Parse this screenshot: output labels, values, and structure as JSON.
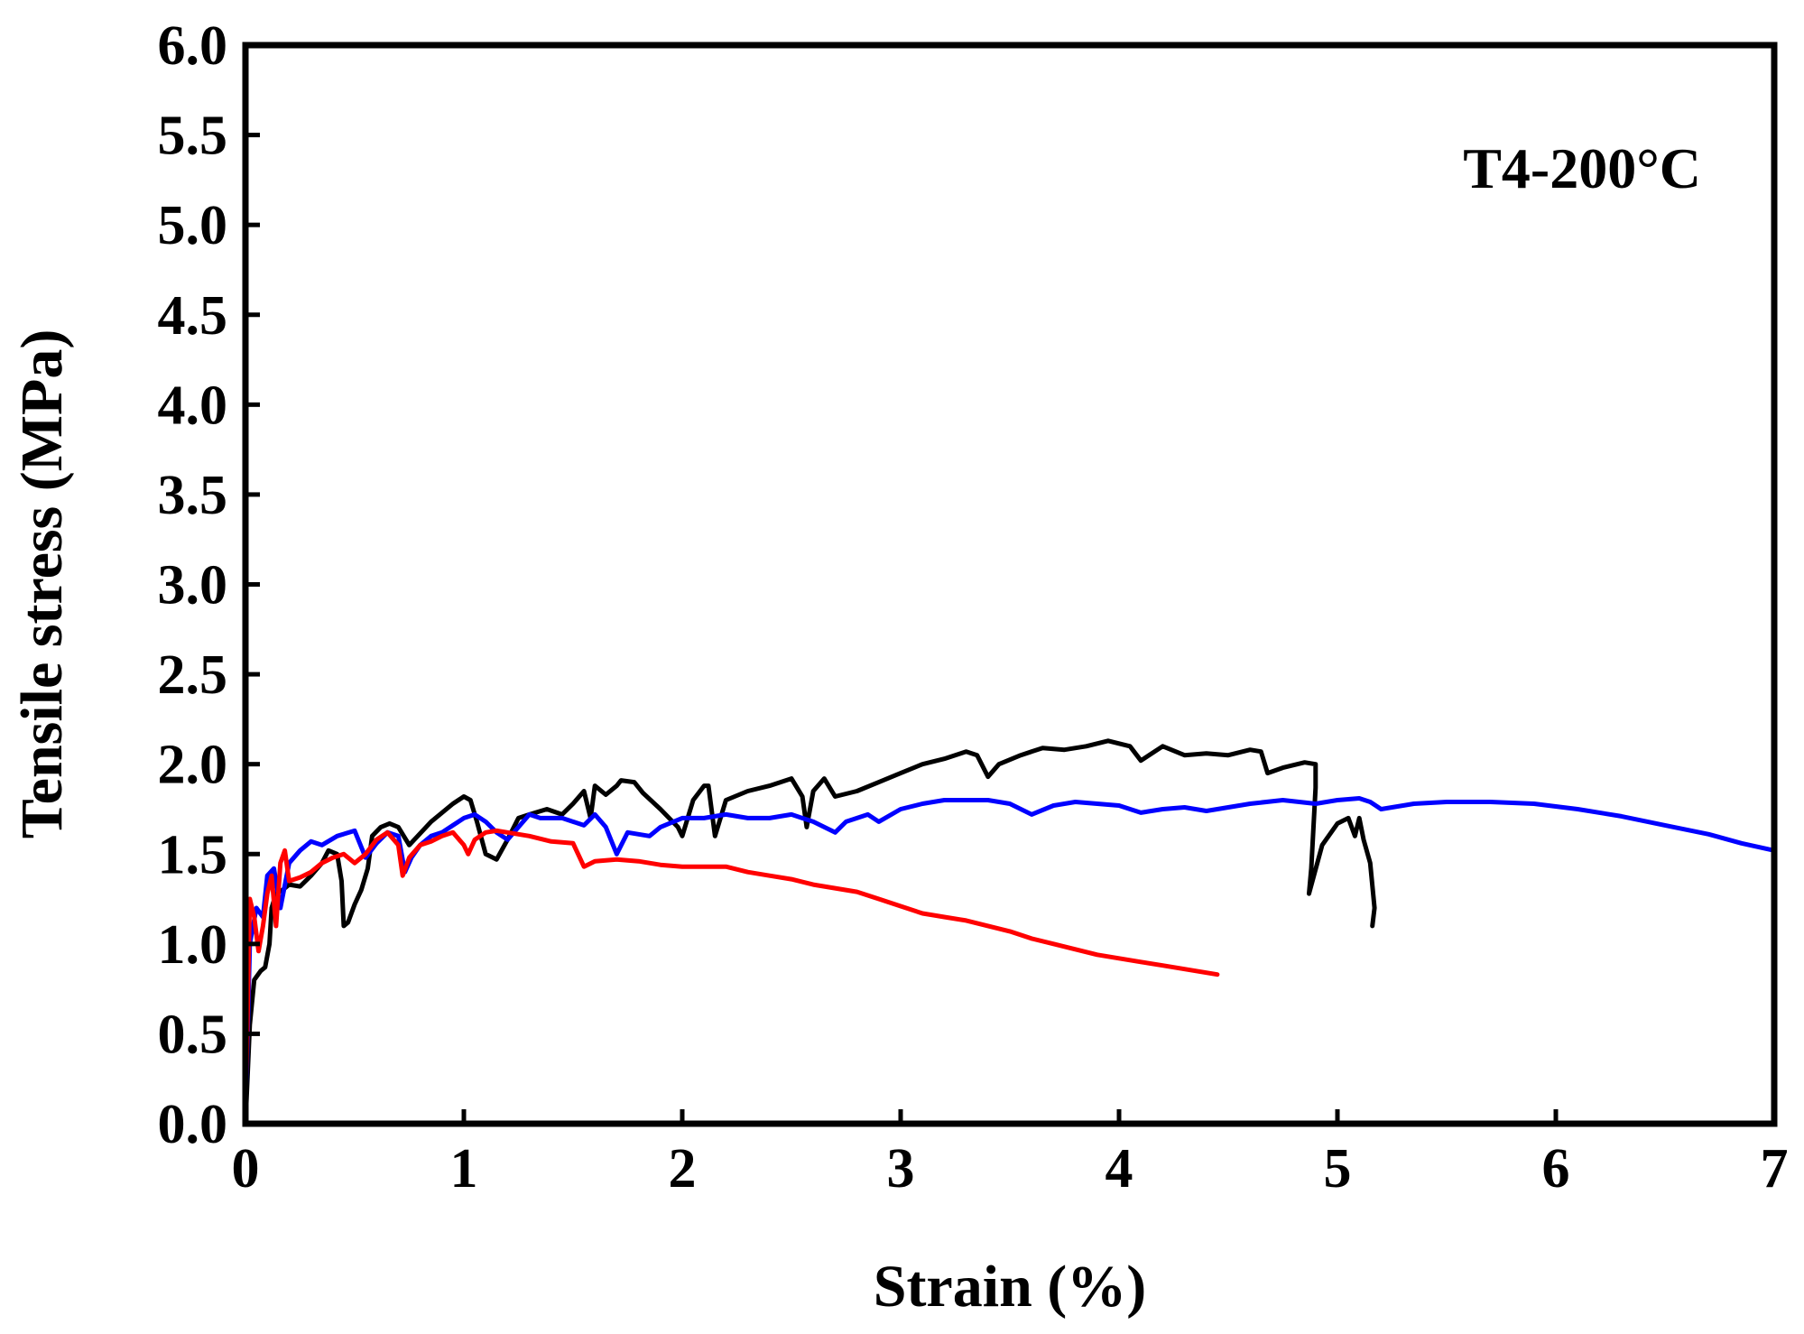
{
  "chart_data": {
    "type": "line",
    "title": "",
    "xlabel": "Strain (%)",
    "ylabel": "Tensile stress (MPa)",
    "xlim": [
      0,
      7
    ],
    "ylim": [
      0,
      6
    ],
    "x_ticks": [
      "0",
      "1",
      "2",
      "3",
      "4",
      "5",
      "6",
      "7"
    ],
    "y_ticks": [
      "0.0",
      "0.5",
      "1.0",
      "1.5",
      "2.0",
      "2.5",
      "3.0",
      "3.5",
      "4.0",
      "4.5",
      "5.0",
      "5.5",
      "6.0"
    ],
    "grid": false,
    "annotation": "T4-200°C",
    "series": [
      {
        "color": "#000000",
        "points": [
          [
            0.0,
            0.0
          ],
          [
            0.02,
            0.55
          ],
          [
            0.04,
            0.8
          ],
          [
            0.07,
            0.85
          ],
          [
            0.09,
            0.87
          ],
          [
            0.11,
            1.0
          ],
          [
            0.12,
            1.2
          ],
          [
            0.14,
            1.28
          ],
          [
            0.17,
            1.3
          ],
          [
            0.2,
            1.33
          ],
          [
            0.25,
            1.32
          ],
          [
            0.3,
            1.38
          ],
          [
            0.35,
            1.45
          ],
          [
            0.38,
            1.52
          ],
          [
            0.42,
            1.5
          ],
          [
            0.44,
            1.35
          ],
          [
            0.45,
            1.1
          ],
          [
            0.47,
            1.12
          ],
          [
            0.5,
            1.22
          ],
          [
            0.53,
            1.3
          ],
          [
            0.56,
            1.42
          ],
          [
            0.58,
            1.6
          ],
          [
            0.62,
            1.65
          ],
          [
            0.66,
            1.67
          ],
          [
            0.7,
            1.65
          ],
          [
            0.75,
            1.55
          ],
          [
            0.85,
            1.68
          ],
          [
            0.95,
            1.78
          ],
          [
            1.0,
            1.82
          ],
          [
            1.03,
            1.8
          ],
          [
            1.06,
            1.68
          ],
          [
            1.1,
            1.5
          ],
          [
            1.15,
            1.47
          ],
          [
            1.2,
            1.58
          ],
          [
            1.25,
            1.7
          ],
          [
            1.3,
            1.72
          ],
          [
            1.38,
            1.75
          ],
          [
            1.45,
            1.72
          ],
          [
            1.5,
            1.78
          ],
          [
            1.55,
            1.85
          ],
          [
            1.58,
            1.7
          ],
          [
            1.6,
            1.88
          ],
          [
            1.65,
            1.83
          ],
          [
            1.7,
            1.88
          ],
          [
            1.72,
            1.91
          ],
          [
            1.78,
            1.9
          ],
          [
            1.82,
            1.84
          ],
          [
            1.9,
            1.75
          ],
          [
            1.98,
            1.65
          ],
          [
            2.0,
            1.6
          ],
          [
            2.05,
            1.8
          ],
          [
            2.1,
            1.88
          ],
          [
            2.12,
            1.88
          ],
          [
            2.15,
            1.6
          ],
          [
            2.2,
            1.8
          ],
          [
            2.3,
            1.85
          ],
          [
            2.4,
            1.88
          ],
          [
            2.5,
            1.92
          ],
          [
            2.55,
            1.82
          ],
          [
            2.57,
            1.65
          ],
          [
            2.6,
            1.85
          ],
          [
            2.65,
            1.92
          ],
          [
            2.7,
            1.82
          ],
          [
            2.8,
            1.85
          ],
          [
            2.9,
            1.9
          ],
          [
            3.0,
            1.95
          ],
          [
            3.1,
            2.0
          ],
          [
            3.2,
            2.03
          ],
          [
            3.3,
            2.07
          ],
          [
            3.35,
            2.05
          ],
          [
            3.4,
            1.93
          ],
          [
            3.45,
            2.0
          ],
          [
            3.55,
            2.05
          ],
          [
            3.65,
            2.09
          ],
          [
            3.75,
            2.08
          ],
          [
            3.85,
            2.1
          ],
          [
            3.95,
            2.13
          ],
          [
            4.05,
            2.1
          ],
          [
            4.1,
            2.02
          ],
          [
            4.2,
            2.1
          ],
          [
            4.3,
            2.05
          ],
          [
            4.4,
            2.06
          ],
          [
            4.5,
            2.05
          ],
          [
            4.6,
            2.08
          ],
          [
            4.65,
            2.07
          ],
          [
            4.68,
            1.95
          ],
          [
            4.75,
            1.98
          ],
          [
            4.85,
            2.01
          ],
          [
            4.9,
            2.0
          ],
          [
            4.9,
            1.87
          ],
          [
            4.88,
            1.42
          ],
          [
            4.87,
            1.28
          ],
          [
            4.93,
            1.55
          ],
          [
            5.0,
            1.67
          ],
          [
            5.05,
            1.7
          ],
          [
            5.08,
            1.6
          ],
          [
            5.1,
            1.7
          ],
          [
            5.12,
            1.58
          ],
          [
            5.15,
            1.45
          ],
          [
            5.17,
            1.2
          ],
          [
            5.16,
            1.1
          ]
        ]
      },
      {
        "color": "#0000ff",
        "points": [
          [
            0.0,
            0.0
          ],
          [
            0.02,
            1.0
          ],
          [
            0.05,
            1.2
          ],
          [
            0.08,
            1.15
          ],
          [
            0.1,
            1.38
          ],
          [
            0.13,
            1.42
          ],
          [
            0.16,
            1.2
          ],
          [
            0.2,
            1.45
          ],
          [
            0.25,
            1.52
          ],
          [
            0.3,
            1.57
          ],
          [
            0.35,
            1.55
          ],
          [
            0.42,
            1.6
          ],
          [
            0.5,
            1.63
          ],
          [
            0.55,
            1.48
          ],
          [
            0.6,
            1.56
          ],
          [
            0.65,
            1.62
          ],
          [
            0.7,
            1.6
          ],
          [
            0.73,
            1.4
          ],
          [
            0.76,
            1.48
          ],
          [
            0.8,
            1.55
          ],
          [
            0.85,
            1.6
          ],
          [
            0.9,
            1.62
          ],
          [
            0.95,
            1.66
          ],
          [
            1.0,
            1.7
          ],
          [
            1.05,
            1.72
          ],
          [
            1.1,
            1.68
          ],
          [
            1.15,
            1.62
          ],
          [
            1.2,
            1.58
          ],
          [
            1.25,
            1.65
          ],
          [
            1.3,
            1.72
          ],
          [
            1.35,
            1.7
          ],
          [
            1.45,
            1.7
          ],
          [
            1.55,
            1.66
          ],
          [
            1.6,
            1.72
          ],
          [
            1.65,
            1.65
          ],
          [
            1.7,
            1.5
          ],
          [
            1.75,
            1.62
          ],
          [
            1.85,
            1.6
          ],
          [
            1.9,
            1.65
          ],
          [
            2.0,
            1.7
          ],
          [
            2.1,
            1.7
          ],
          [
            2.2,
            1.72
          ],
          [
            2.3,
            1.7
          ],
          [
            2.4,
            1.7
          ],
          [
            2.5,
            1.72
          ],
          [
            2.6,
            1.68
          ],
          [
            2.7,
            1.62
          ],
          [
            2.75,
            1.68
          ],
          [
            2.85,
            1.72
          ],
          [
            2.9,
            1.68
          ],
          [
            3.0,
            1.75
          ],
          [
            3.1,
            1.78
          ],
          [
            3.2,
            1.8
          ],
          [
            3.3,
            1.8
          ],
          [
            3.4,
            1.8
          ],
          [
            3.5,
            1.78
          ],
          [
            3.6,
            1.72
          ],
          [
            3.7,
            1.77
          ],
          [
            3.8,
            1.79
          ],
          [
            3.9,
            1.78
          ],
          [
            4.0,
            1.77
          ],
          [
            4.1,
            1.73
          ],
          [
            4.2,
            1.75
          ],
          [
            4.3,
            1.76
          ],
          [
            4.4,
            1.74
          ],
          [
            4.5,
            1.76
          ],
          [
            4.6,
            1.78
          ],
          [
            4.75,
            1.8
          ],
          [
            4.9,
            1.78
          ],
          [
            5.0,
            1.8
          ],
          [
            5.1,
            1.81
          ],
          [
            5.15,
            1.79
          ],
          [
            5.2,
            1.75
          ],
          [
            5.25,
            1.76
          ],
          [
            5.35,
            1.78
          ],
          [
            5.5,
            1.79
          ],
          [
            5.7,
            1.79
          ],
          [
            5.9,
            1.78
          ],
          [
            6.1,
            1.75
          ],
          [
            6.3,
            1.71
          ],
          [
            6.5,
            1.66
          ],
          [
            6.7,
            1.61
          ],
          [
            6.85,
            1.56
          ],
          [
            7.0,
            1.52
          ]
        ]
      },
      {
        "color": "#ff0000",
        "points": [
          [
            0.0,
            0.0
          ],
          [
            0.02,
            1.25
          ],
          [
            0.04,
            1.15
          ],
          [
            0.06,
            0.96
          ],
          [
            0.08,
            1.1
          ],
          [
            0.1,
            1.28
          ],
          [
            0.12,
            1.38
          ],
          [
            0.14,
            1.1
          ],
          [
            0.16,
            1.45
          ],
          [
            0.18,
            1.52
          ],
          [
            0.2,
            1.35
          ],
          [
            0.25,
            1.37
          ],
          [
            0.3,
            1.4
          ],
          [
            0.35,
            1.45
          ],
          [
            0.4,
            1.48
          ],
          [
            0.45,
            1.5
          ],
          [
            0.5,
            1.45
          ],
          [
            0.55,
            1.5
          ],
          [
            0.6,
            1.58
          ],
          [
            0.65,
            1.62
          ],
          [
            0.7,
            1.55
          ],
          [
            0.72,
            1.38
          ],
          [
            0.75,
            1.48
          ],
          [
            0.8,
            1.55
          ],
          [
            0.85,
            1.57
          ],
          [
            0.9,
            1.6
          ],
          [
            0.95,
            1.62
          ],
          [
            1.0,
            1.55
          ],
          [
            1.02,
            1.5
          ],
          [
            1.05,
            1.58
          ],
          [
            1.1,
            1.62
          ],
          [
            1.15,
            1.63
          ],
          [
            1.2,
            1.62
          ],
          [
            1.3,
            1.6
          ],
          [
            1.4,
            1.57
          ],
          [
            1.5,
            1.56
          ],
          [
            1.55,
            1.43
          ],
          [
            1.6,
            1.46
          ],
          [
            1.7,
            1.47
          ],
          [
            1.8,
            1.46
          ],
          [
            1.9,
            1.44
          ],
          [
            2.0,
            1.43
          ],
          [
            2.1,
            1.43
          ],
          [
            2.2,
            1.43
          ],
          [
            2.3,
            1.4
          ],
          [
            2.4,
            1.38
          ],
          [
            2.5,
            1.36
          ],
          [
            2.6,
            1.33
          ],
          [
            2.7,
            1.31
          ],
          [
            2.8,
            1.29
          ],
          [
            2.9,
            1.25
          ],
          [
            3.0,
            1.21
          ],
          [
            3.1,
            1.17
          ],
          [
            3.2,
            1.15
          ],
          [
            3.3,
            1.13
          ],
          [
            3.4,
            1.1
          ],
          [
            3.5,
            1.07
          ],
          [
            3.6,
            1.03
          ],
          [
            3.7,
            1.0
          ],
          [
            3.8,
            0.97
          ],
          [
            3.9,
            0.94
          ],
          [
            4.0,
            0.92
          ],
          [
            4.1,
            0.9
          ],
          [
            4.2,
            0.88
          ],
          [
            4.3,
            0.86
          ],
          [
            4.4,
            0.84
          ],
          [
            4.45,
            0.83
          ]
        ]
      }
    ]
  }
}
